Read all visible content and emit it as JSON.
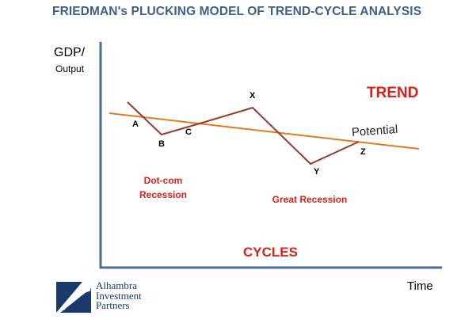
{
  "title": "FRIEDMAN's PLUCKING MODEL OF TREND-CYCLE ANALYSIS",
  "axes": {
    "y_label_line1": "GDP/",
    "y_label_line2": "Output",
    "x_label": "Time"
  },
  "points": {
    "A": "A",
    "B": "B",
    "C": "C",
    "X": "X",
    "Y": "Y",
    "Z": "Z"
  },
  "trend_label": "TREND",
  "cycles_label": "CYCLES",
  "potential_label": "Potential",
  "recessions": {
    "dotcom_line1": "Dot-com",
    "dotcom_line2": "Recession",
    "great": "Great Recession"
  },
  "logo": {
    "line1": "Alhambra",
    "line2": "Investment",
    "line3": "Partners"
  },
  "colors": {
    "title": "#3f5e89",
    "trend_line": "#e07b1f",
    "cycle_line": "#9b3a2c",
    "axis": "#4a6a97",
    "red_text": "#d9211b"
  }
}
